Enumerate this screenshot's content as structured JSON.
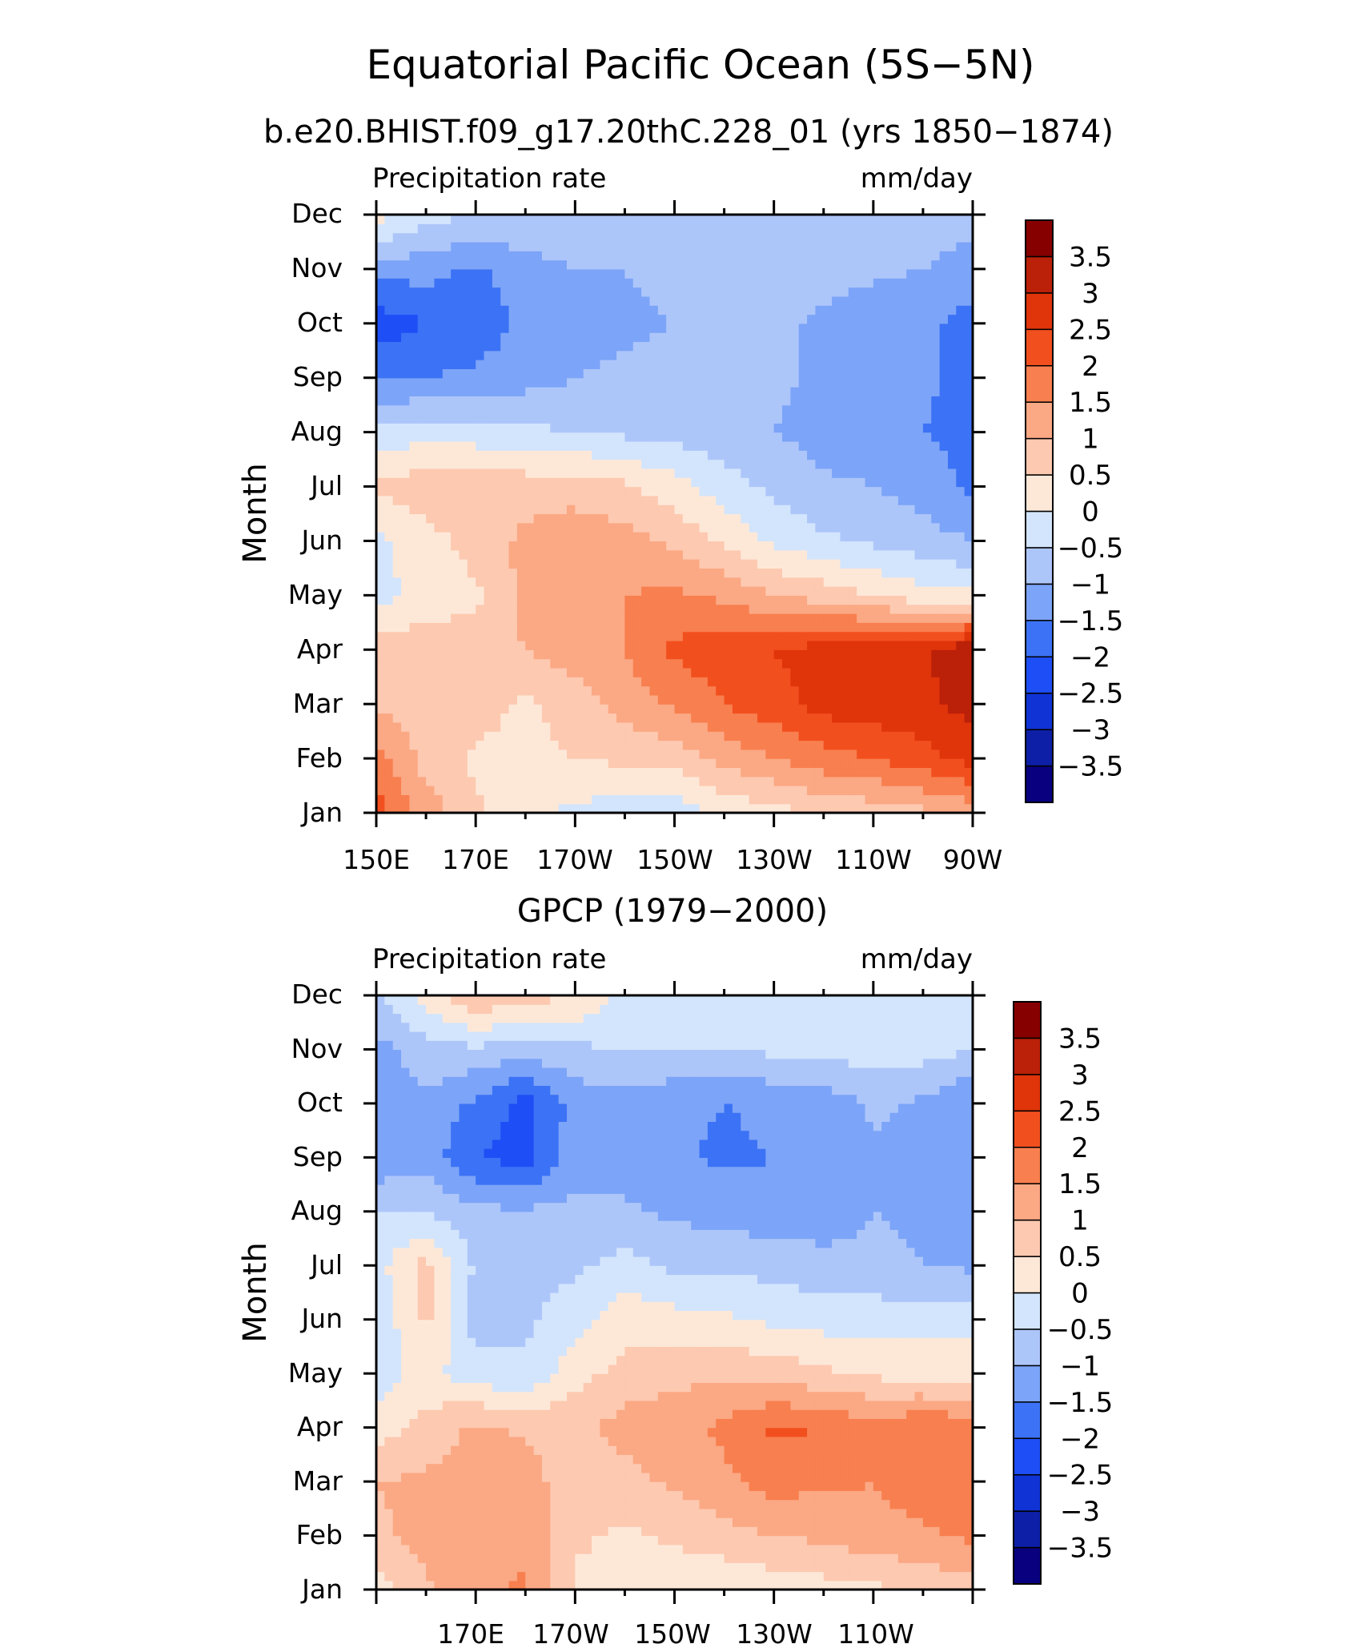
{
  "title": "Equatorial Pacific Ocean (5S−5N)",
  "colors": [
    "#08007e",
    "#0d1fa6",
    "#0f33d4",
    "#1e4ef5",
    "#3c72f5",
    "#7ca4f8",
    "#adc6fa",
    "#d3e5fc",
    "#fde8d8",
    "#fdc9b0",
    "#fba884",
    "#f87f4f",
    "#f24f1f",
    "#e0340a",
    "#bb2008",
    "#870000"
  ],
  "contour_levels": [
    "3.5",
    "3",
    "2.5",
    "2",
    "1.5",
    "1",
    "0.5",
    "0",
    "−0.5",
    "−1",
    "−1.5",
    "−2",
    "−2.5",
    "−3",
    "−3.5"
  ],
  "panels": [
    {
      "subtitle": "b.e20.BHIST.f09_g17.20thC.228_01 (yrs 1850−1874)",
      "left_label": "Precipitation rate",
      "right_label": "mm/day",
      "ylabel": "Month",
      "months": [
        "Jan",
        "Feb",
        "Mar",
        "Apr",
        "May",
        "Jun",
        "Jul",
        "Aug",
        "Sep",
        "Oct",
        "Nov",
        "Dec"
      ],
      "xticks": [
        "150E",
        "170E",
        "170W",
        "150W",
        "130W",
        "110W",
        "90W"
      ]
    },
    {
      "subtitle": "GPCP (1979−2000)",
      "left_label": "Precipitation rate",
      "right_label": "mm/day",
      "ylabel": "Month",
      "months": [
        "Jan",
        "Feb",
        "Mar",
        "Apr",
        "May",
        "Jun",
        "Jul",
        "Aug",
        "Sep",
        "Oct",
        "Nov",
        "Dec"
      ],
      "xticks": [
        "",
        "170E",
        "170W",
        "150W",
        "130W",
        "110W",
        ""
      ]
    }
  ],
  "chart_data": [
    {
      "type": "heatmap",
      "title": "b.e20.BHIST.f09_g17.20thC.228_01 (yrs 1850−1874)",
      "xlabel": "",
      "ylabel": "Month",
      "units": "mm/day",
      "x": [
        "150E",
        "160E",
        "170E",
        "180",
        "170W",
        "160W",
        "150W",
        "140W",
        "130W",
        "120W",
        "110W",
        "100W",
        "90W"
      ],
      "y": [
        "Jan",
        "Feb",
        "Mar",
        "Apr",
        "May",
        "Jun",
        "Jul",
        "Aug",
        "Sep",
        "Oct",
        "Nov",
        "Dec"
      ],
      "values": [
        [
          2.2,
          1.3,
          0.6,
          0.1,
          -0.1,
          -0.3,
          -0.3,
          0.1,
          0.3,
          0.6,
          0.7,
          0.9,
          1.2
        ],
        [
          1.7,
          0.8,
          0.4,
          0.4,
          0.5,
          0.6,
          0.7,
          1.2,
          1.5,
          1.8,
          2.0,
          2.3,
          2.7
        ],
        [
          0.9,
          0.7,
          0.7,
          0.4,
          0.7,
          1.2,
          1.6,
          2.0,
          2.3,
          2.7,
          2.8,
          2.9,
          3.2
        ],
        [
          0.8,
          0.8,
          0.8,
          1.0,
          1.3,
          1.5,
          2.1,
          2.3,
          2.5,
          2.7,
          2.8,
          2.9,
          3.4
        ],
        [
          -0.2,
          0.2,
          0.4,
          1.2,
          1.4,
          1.5,
          1.6,
          1.4,
          1.0,
          0.8,
          0.5,
          0.2,
          0.1
        ],
        [
          -0.1,
          0.3,
          0.7,
          1.1,
          1.3,
          1.2,
          0.9,
          0.4,
          -0.1,
          -0.4,
          -0.6,
          -0.8,
          -1.0
        ],
        [
          0.6,
          0.8,
          0.9,
          0.8,
          0.8,
          0.6,
          0.2,
          -0.3,
          -0.6,
          -0.9,
          -1.0,
          -1.2,
          -1.6
        ],
        [
          -0.3,
          -0.2,
          -0.3,
          -0.4,
          -0.5,
          -0.6,
          -0.7,
          -0.8,
          -1.0,
          -1.2,
          -1.3,
          -1.5,
          -1.7
        ],
        [
          -1.6,
          -1.5,
          -1.4,
          -1.2,
          -1.0,
          -0.9,
          -0.8,
          -0.8,
          -0.9,
          -1.1,
          -1.2,
          -1.4,
          -1.7
        ],
        [
          -2.3,
          -2.0,
          -1.8,
          -1.4,
          -1.2,
          -1.1,
          -1.0,
          -0.8,
          -0.9,
          -1.1,
          -1.3,
          -1.4,
          -1.7
        ],
        [
          -1.3,
          -1.3,
          -1.6,
          -1.2,
          -1.0,
          -1.0,
          -0.9,
          -0.8,
          -0.8,
          -0.8,
          -0.9,
          -1.0,
          -1.2
        ],
        [
          0.2,
          -0.3,
          -0.5,
          -0.6,
          -0.7,
          -0.7,
          -0.7,
          -0.7,
          -0.7,
          -0.7,
          -0.8,
          -0.8,
          -0.8
        ]
      ],
      "zlim": [
        -4,
        4
      ]
    },
    {
      "type": "heatmap",
      "title": "GPCP (1979−2000)",
      "xlabel": "",
      "ylabel": "Month",
      "units": "mm/day",
      "x": [
        "150E",
        "160E",
        "170E",
        "180",
        "170W",
        "160W",
        "150W",
        "140W",
        "130W",
        "120W",
        "110W",
        "100W",
        "90W"
      ],
      "y": [
        "Jan",
        "Feb",
        "Mar",
        "Apr",
        "May",
        "Jun",
        "Jul",
        "Aug",
        "Sep",
        "Oct",
        "Nov",
        "Dec"
      ],
      "values": [
        [
          0.2,
          0.9,
          1.3,
          1.6,
          0.4,
          0.2,
          0.1,
          0.1,
          0.2,
          0.3,
          0.4,
          0.6,
          0.8
        ],
        [
          0.9,
          1.2,
          1.4,
          1.3,
          0.6,
          0.4,
          0.6,
          0.8,
          1.0,
          1.1,
          1.3,
          1.4,
          1.6
        ],
        [
          1.0,
          1.1,
          1.2,
          1.3,
          0.6,
          0.8,
          1.1,
          1.4,
          1.7,
          1.6,
          1.5,
          1.8,
          1.7
        ],
        [
          0.2,
          0.7,
          1.1,
          0.9,
          0.9,
          1.2,
          1.4,
          1.6,
          2.1,
          2.0,
          1.7,
          2.0,
          1.8
        ],
        [
          -0.3,
          0.2,
          -0.3,
          -0.4,
          0.3,
          0.7,
          0.8,
          0.9,
          0.8,
          0.6,
          0.4,
          0.3,
          0.2
        ],
        [
          -0.4,
          0.6,
          -0.7,
          -0.6,
          -0.2,
          0.3,
          0.2,
          0.1,
          -0.1,
          -0.2,
          -0.2,
          -0.2,
          -0.1
        ],
        [
          -0.2,
          0.7,
          -0.6,
          -0.6,
          -0.6,
          -0.3,
          -0.6,
          -0.6,
          -0.7,
          -0.8,
          -0.9,
          -1.0,
          -1.1
        ],
        [
          -0.5,
          -0.5,
          -0.9,
          -0.9,
          -0.9,
          -0.9,
          -1.1,
          -1.2,
          -1.3,
          -1.3,
          -1.0,
          -1.1,
          -1.3
        ],
        [
          -1.4,
          -1.2,
          -2.0,
          -2.2,
          -1.2,
          -1.3,
          -1.4,
          -1.6,
          -1.5,
          -1.4,
          -1.1,
          -1.2,
          -1.3
        ],
        [
          -1.3,
          -1.1,
          -1.6,
          -2.2,
          -1.3,
          -1.2,
          -1.4,
          -1.5,
          -1.4,
          -1.3,
          -0.9,
          -1.1,
          -1.5
        ],
        [
          -1.2,
          -0.7,
          -0.6,
          -0.8,
          -0.6,
          -0.5,
          -0.5,
          -0.5,
          -0.4,
          -0.3,
          -0.3,
          -0.3,
          -0.5
        ],
        [
          -0.5,
          0.2,
          1.0,
          0.7,
          0.5,
          -0.2,
          -0.4,
          -0.4,
          -0.3,
          -0.3,
          -0.3,
          -0.3,
          -0.4
        ]
      ],
      "zlim": [
        -4,
        4
      ]
    }
  ]
}
